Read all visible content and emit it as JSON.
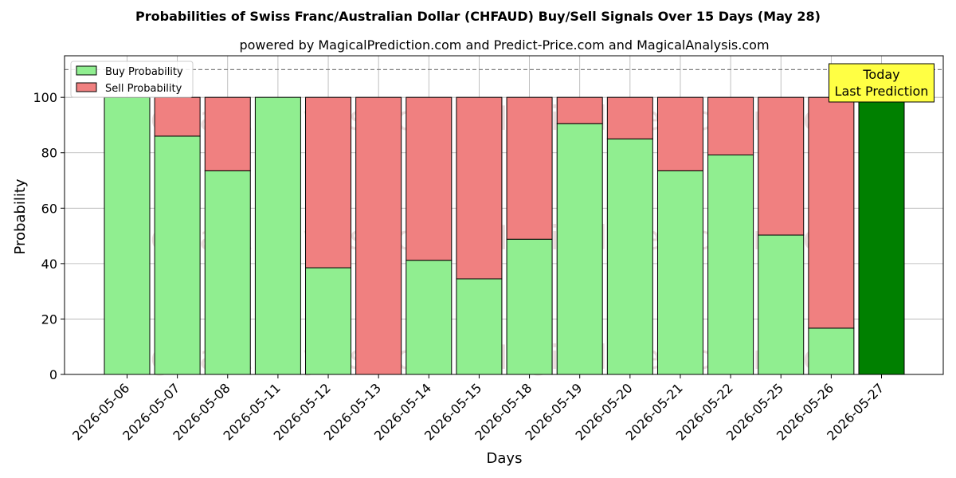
{
  "chart_data": {
    "type": "bar",
    "stacked": true,
    "title": "Probabilities of Swiss Franc/Australian Dollar (CHFAUD) Buy/Sell Signals Over 15 Days (May 28)",
    "subtitle": "powered by MagicalPrediction.com and Predict-Price.com and MagicalAnalysis.com",
    "xlabel": "Days",
    "ylabel": "Probability",
    "ylim": [
      0,
      115
    ],
    "yticks": [
      0,
      20,
      40,
      60,
      80,
      100
    ],
    "reference_line": 110,
    "grid": true,
    "legend_position": "top-left",
    "categories": [
      "2026-05-06",
      "2026-05-07",
      "2026-05-08",
      "2026-05-11",
      "2026-05-12",
      "2026-05-13",
      "2026-05-14",
      "2026-05-15",
      "2026-05-18",
      "2026-05-19",
      "2026-05-20",
      "2026-05-21",
      "2026-05-22",
      "2026-05-25",
      "2026-05-26",
      "2026-05-27"
    ],
    "series": [
      {
        "name": "Buy Probability",
        "color": "#90ee90",
        "values": [
          100,
          86,
          73.5,
          100,
          38.5,
          0,
          41.2,
          34.5,
          48.8,
          90.5,
          85,
          73.5,
          79.2,
          50.3,
          16.7,
          100
        ]
      },
      {
        "name": "Sell Probability",
        "color": "#f08080",
        "values": [
          0,
          14,
          26.5,
          0,
          61.5,
          100,
          58.8,
          65.5,
          51.2,
          9.5,
          15,
          26.5,
          20.8,
          49.7,
          83.3,
          0
        ]
      }
    ],
    "highlight": {
      "index": 15,
      "color": "#008000",
      "label_line1": "Today",
      "label_line2": "Last Prediction",
      "box_color": "#ffff44"
    },
    "watermarks": [
      "MagicalAnalysis.com",
      "MagicalPrediction.com"
    ]
  }
}
